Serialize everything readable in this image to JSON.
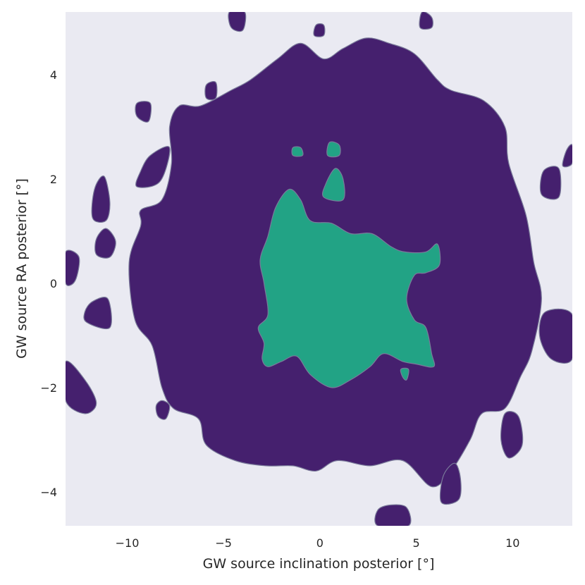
{
  "chart_data": {
    "type": "contour",
    "title": "",
    "xlabel": "GW source inclination posterior [°]",
    "ylabel": "GW source RA posterior [°]",
    "xlim": [
      -13.2,
      13.1
    ],
    "ylim": [
      -4.65,
      5.2
    ],
    "x_ticks": [
      -10,
      -5,
      0,
      5,
      10
    ],
    "y_ticks": [
      -4,
      -2,
      0,
      2,
      4
    ],
    "x_tick_labels": [
      "−10",
      "−5",
      "0",
      "5",
      "10"
    ],
    "y_tick_labels": [
      "−4",
      "−2",
      "0",
      "2",
      "4"
    ],
    "grid": false,
    "legend": "none",
    "colors": {
      "background": "#eaeaf2",
      "outer_level": "#45206e",
      "inner_level": "#22a385",
      "contour_edge": "#7a7a9a"
    },
    "levels": [
      {
        "name": "outer",
        "blobs": [
          {
            "points": [
              [
                -8.2,
                -2.0
              ],
              [
                -8.7,
                -1.2
              ],
              [
                -9.6,
                -0.7
              ],
              [
                -9.9,
                0.4
              ],
              [
                -9.3,
                1.1
              ],
              [
                -9.3,
                1.4
              ],
              [
                -8.2,
                1.6
              ],
              [
                -7.7,
                2.3
              ],
              [
                -7.8,
                3.0
              ],
              [
                -7.3,
                3.4
              ],
              [
                -6.2,
                3.4
              ],
              [
                -4.6,
                3.7
              ],
              [
                -3.6,
                3.9
              ],
              [
                -2.2,
                4.3
              ],
              [
                -1.0,
                4.6
              ],
              [
                0.2,
                4.3
              ],
              [
                1.2,
                4.5
              ],
              [
                2.4,
                4.7
              ],
              [
                3.6,
                4.6
              ],
              [
                4.9,
                4.4
              ],
              [
                6.1,
                3.9
              ],
              [
                6.8,
                3.7
              ],
              [
                8.5,
                3.5
              ],
              [
                9.6,
                3.0
              ],
              [
                9.8,
                2.3
              ],
              [
                10.7,
                1.3
              ],
              [
                11.1,
                0.4
              ],
              [
                11.5,
                -0.3
              ],
              [
                11.0,
                -1.3
              ],
              [
                10.4,
                -1.8
              ],
              [
                9.6,
                -2.4
              ],
              [
                8.4,
                -2.5
              ],
              [
                7.8,
                -3.0
              ],
              [
                6.8,
                -3.6
              ],
              [
                5.8,
                -3.9
              ],
              [
                4.3,
                -3.4
              ],
              [
                2.6,
                -3.5
              ],
              [
                0.9,
                -3.4
              ],
              [
                -0.2,
                -3.6
              ],
              [
                -1.4,
                -3.5
              ],
              [
                -2.8,
                -3.5
              ],
              [
                -4.4,
                -3.4
              ],
              [
                -5.9,
                -3.1
              ],
              [
                -6.3,
                -2.6
              ],
              [
                -7.6,
                -2.4
              ]
            ]
          },
          {
            "points": [
              [
                3.0,
                -4.65
              ],
              [
                4.6,
                -4.65
              ],
              [
                4.5,
                -4.3
              ],
              [
                3.7,
                -4.25
              ],
              [
                3.0,
                -4.35
              ]
            ]
          },
          {
            "points": [
              [
                6.3,
                -4.2
              ],
              [
                7.2,
                -4.15
              ],
              [
                7.3,
                -3.75
              ],
              [
                7.0,
                -3.45
              ],
              [
                6.4,
                -3.7
              ]
            ]
          },
          {
            "points": [
              [
                9.8,
                -3.35
              ],
              [
                10.5,
                -3.1
              ],
              [
                10.3,
                -2.55
              ],
              [
                9.6,
                -2.5
              ],
              [
                9.4,
                -3.0
              ]
            ]
          },
          {
            "points": [
              [
                -13.2,
                -1.5
              ],
              [
                -12.2,
                -1.85
              ],
              [
                -11.6,
                -2.3
              ],
              [
                -12.2,
                -2.5
              ],
              [
                -13.2,
                -2.25
              ]
            ]
          },
          {
            "points": [
              [
                -8.4,
                -2.55
              ],
              [
                -8.0,
                -2.6
              ],
              [
                -7.8,
                -2.35
              ],
              [
                -8.2,
                -2.25
              ],
              [
                -8.5,
                -2.35
              ]
            ]
          },
          {
            "points": [
              [
                -12.1,
                -0.75
              ],
              [
                -10.9,
                -0.85
              ],
              [
                -11.0,
                -0.3
              ],
              [
                -11.8,
                -0.35
              ],
              [
                -12.2,
                -0.55
              ]
            ]
          },
          {
            "points": [
              [
                -13.2,
                0.0
              ],
              [
                -12.7,
                0.05
              ],
              [
                -12.5,
                0.5
              ],
              [
                -13.2,
                0.6
              ]
            ]
          },
          {
            "points": [
              [
                -11.6,
                0.55
              ],
              [
                -10.9,
                0.5
              ],
              [
                -10.6,
                0.8
              ],
              [
                -11.1,
                1.05
              ],
              [
                -11.6,
                0.85
              ]
            ]
          },
          {
            "points": [
              [
                -11.8,
                1.25
              ],
              [
                -11.1,
                1.2
              ],
              [
                -10.9,
                1.55
              ],
              [
                -11.2,
                2.05
              ],
              [
                -11.7,
                1.8
              ]
            ]
          },
          {
            "points": [
              [
                -9.5,
                1.85
              ],
              [
                -8.3,
                1.95
              ],
              [
                -7.8,
                2.6
              ],
              [
                -8.8,
                2.45
              ],
              [
                -9.3,
                2.15
              ]
            ]
          },
          {
            "points": [
              [
                -9.5,
                3.2
              ],
              [
                -8.9,
                3.1
              ],
              [
                -8.8,
                3.45
              ],
              [
                -9.5,
                3.45
              ]
            ]
          },
          {
            "points": [
              [
                -5.9,
                3.55
              ],
              [
                -5.4,
                3.55
              ],
              [
                -5.4,
                3.85
              ],
              [
                -5.9,
                3.8
              ]
            ]
          },
          {
            "points": [
              [
                -4.6,
                4.9
              ],
              [
                -4.0,
                4.85
              ],
              [
                -3.9,
                5.2
              ],
              [
                -4.7,
                5.2
              ]
            ]
          },
          {
            "points": [
              [
                -0.3,
                4.75
              ],
              [
                0.2,
                4.75
              ],
              [
                0.2,
                4.95
              ],
              [
                -0.2,
                4.95
              ]
            ]
          },
          {
            "points": [
              [
                5.2,
                4.9
              ],
              [
                5.8,
                4.9
              ],
              [
                5.8,
                5.1
              ],
              [
                5.3,
                5.2
              ]
            ]
          },
          {
            "points": [
              [
                11.5,
                1.7
              ],
              [
                12.4,
                1.65
              ],
              [
                12.4,
                2.2
              ],
              [
                11.6,
                2.15
              ]
            ]
          },
          {
            "points": [
              [
                12.6,
                2.25
              ],
              [
                13.1,
                2.3
              ],
              [
                13.1,
                2.65
              ],
              [
                12.8,
                2.55
              ]
            ]
          },
          {
            "points": [
              [
                11.7,
                -0.55
              ],
              [
                13.1,
                -0.6
              ],
              [
                13.1,
                -1.45
              ],
              [
                12.0,
                -1.45
              ],
              [
                11.4,
                -1.0
              ]
            ]
          }
        ]
      },
      {
        "name": "inner",
        "blobs": [
          {
            "points": [
              [
                -2.9,
                -1.15
              ],
              [
                -3.2,
                -0.85
              ],
              [
                -2.7,
                -0.6
              ],
              [
                -2.9,
                0.0
              ],
              [
                -3.1,
                0.45
              ],
              [
                -2.7,
                0.9
              ],
              [
                -2.3,
                1.45
              ],
              [
                -1.6,
                1.8
              ],
              [
                -1.0,
                1.6
              ],
              [
                -0.5,
                1.2
              ],
              [
                0.6,
                1.15
              ],
              [
                1.6,
                0.95
              ],
              [
                2.7,
                0.95
              ],
              [
                3.7,
                0.7
              ],
              [
                4.4,
                0.6
              ],
              [
                5.5,
                0.6
              ],
              [
                6.1,
                0.75
              ],
              [
                6.2,
                0.35
              ],
              [
                5.5,
                0.2
              ],
              [
                4.9,
                0.15
              ],
              [
                4.5,
                -0.3
              ],
              [
                4.9,
                -0.7
              ],
              [
                5.5,
                -0.85
              ],
              [
                5.8,
                -1.35
              ],
              [
                5.9,
                -1.6
              ],
              [
                5.0,
                -1.55
              ],
              [
                4.3,
                -1.5
              ],
              [
                3.3,
                -1.35
              ],
              [
                2.6,
                -1.6
              ],
              [
                1.6,
                -1.85
              ],
              [
                0.6,
                -2.0
              ],
              [
                -0.5,
                -1.75
              ],
              [
                -1.2,
                -1.4
              ],
              [
                -2.0,
                -1.5
              ],
              [
                -2.7,
                -1.6
              ],
              [
                -3.0,
                -1.45
              ]
            ]
          },
          {
            "points": [
              [
                0.2,
                1.65
              ],
              [
                1.2,
                1.6
              ],
              [
                1.2,
                2.0
              ],
              [
                0.8,
                2.2
              ],
              [
                0.3,
                1.9
              ]
            ]
          },
          {
            "points": [
              [
                0.4,
                2.45
              ],
              [
                1.0,
                2.45
              ],
              [
                1.0,
                2.65
              ],
              [
                0.5,
                2.7
              ]
            ]
          },
          {
            "points": [
              [
                -1.4,
                2.45
              ],
              [
                -0.9,
                2.45
              ],
              [
                -1.0,
                2.6
              ],
              [
                -1.4,
                2.6
              ]
            ]
          },
          {
            "points": [
              [
                4.2,
                -1.65
              ],
              [
                4.6,
                -1.65
              ],
              [
                4.5,
                -1.85
              ],
              [
                4.3,
                -1.8
              ]
            ]
          }
        ]
      }
    ]
  }
}
